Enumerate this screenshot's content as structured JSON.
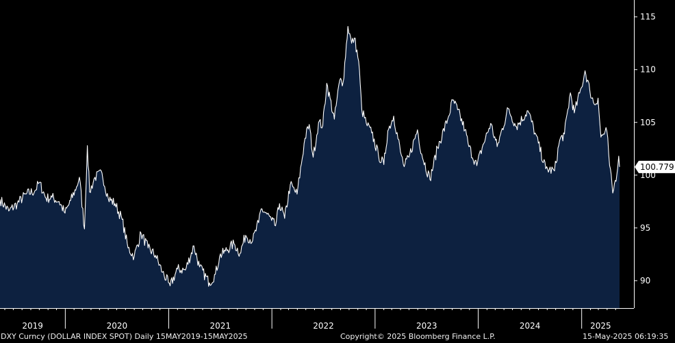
{
  "chart_data": {
    "type": "area",
    "title": "",
    "xlabel": "",
    "ylabel": "",
    "x_range": [
      "2019-05-15",
      "2025-05-15"
    ],
    "ylim": [
      87.4,
      116.6
    ],
    "y_ticks": [
      90,
      95,
      100,
      105,
      110,
      115
    ],
    "x_ticks": [
      "2019",
      "2020",
      "2021",
      "2022",
      "2023",
      "2024",
      "2025"
    ],
    "grid": false,
    "series": [
      {
        "color": "#ffffff",
        "fill": "#0d2140",
        "points": [
          [
            "2019-05-15",
            97.7
          ],
          [
            "2019-06-15",
            96.6
          ],
          [
            "2019-07-15",
            97.3
          ],
          [
            "2019-08-15",
            98.2
          ],
          [
            "2019-09-15",
            98.5
          ],
          [
            "2019-10-01",
            99.3
          ],
          [
            "2019-10-25",
            97.8
          ],
          [
            "2019-11-15",
            97.9
          ],
          [
            "2019-12-10",
            97.5
          ],
          [
            "2019-12-31",
            96.4
          ],
          [
            "2020-01-20",
            97.6
          ],
          [
            "2020-02-10",
            98.9
          ],
          [
            "2020-02-20",
            99.8
          ],
          [
            "2020-03-09",
            94.9
          ],
          [
            "2020-03-19",
            102.8
          ],
          [
            "2020-03-27",
            98.4
          ],
          [
            "2020-04-15",
            99.8
          ],
          [
            "2020-05-10",
            100.2
          ],
          [
            "2020-06-01",
            97.8
          ],
          [
            "2020-06-25",
            97.3
          ],
          [
            "2020-07-20",
            95.8
          ],
          [
            "2020-08-10",
            93.1
          ],
          [
            "2020-09-01",
            92.3
          ],
          [
            "2020-09-25",
            94.5
          ],
          [
            "2020-10-20",
            93.1
          ],
          [
            "2020-11-15",
            92.4
          ],
          [
            "2020-12-10",
            90.8
          ],
          [
            "2020-12-31",
            89.8
          ],
          [
            "2021-01-06",
            89.5
          ],
          [
            "2021-02-01",
            91.1
          ],
          [
            "2021-03-01",
            91.0
          ],
          [
            "2021-03-31",
            93.3
          ],
          [
            "2021-04-20",
            91.3
          ],
          [
            "2021-05-25",
            89.8
          ],
          [
            "2021-06-15",
            90.6
          ],
          [
            "2021-06-30",
            92.3
          ],
          [
            "2021-07-20",
            92.8
          ],
          [
            "2021-08-20",
            93.5
          ],
          [
            "2021-09-10",
            92.6
          ],
          [
            "2021-09-30",
            94.3
          ],
          [
            "2021-10-25",
            93.8
          ],
          [
            "2021-11-15",
            95.5
          ],
          [
            "2021-11-24",
            96.8
          ],
          [
            "2021-12-15",
            96.3
          ],
          [
            "2021-12-31",
            95.7
          ],
          [
            "2022-01-14",
            95.2
          ],
          [
            "2022-01-28",
            97.3
          ],
          [
            "2022-02-15",
            95.9
          ],
          [
            "2022-03-07",
            99.1
          ],
          [
            "2022-03-31",
            98.2
          ],
          [
            "2022-04-28",
            103.5
          ],
          [
            "2022-05-13",
            104.8
          ],
          [
            "2022-05-27",
            101.7
          ],
          [
            "2022-06-15",
            105.0
          ],
          [
            "2022-06-30",
            104.7
          ],
          [
            "2022-07-14",
            108.7
          ],
          [
            "2022-08-10",
            105.3
          ],
          [
            "2022-08-29",
            109.0
          ],
          [
            "2022-09-10",
            108.8
          ],
          [
            "2022-09-27",
            114.1
          ],
          [
            "2022-10-10",
            112.5
          ],
          [
            "2022-10-20",
            113.0
          ],
          [
            "2022-11-04",
            110.8
          ],
          [
            "2022-11-15",
            106.2
          ],
          [
            "2022-12-01",
            104.9
          ],
          [
            "2022-12-20",
            104.0
          ],
          [
            "2023-01-13",
            101.9
          ],
          [
            "2023-02-01",
            101.0
          ],
          [
            "2023-02-15",
            104.2
          ],
          [
            "2023-03-08",
            105.6
          ],
          [
            "2023-04-01",
            102.2
          ],
          [
            "2023-04-14",
            100.8
          ],
          [
            "2023-05-01",
            101.7
          ],
          [
            "2023-05-31",
            104.3
          ],
          [
            "2023-06-15",
            102.0
          ],
          [
            "2023-07-14",
            99.6
          ],
          [
            "2023-08-10",
            102.6
          ],
          [
            "2023-09-15",
            105.3
          ],
          [
            "2023-10-03",
            107.1
          ],
          [
            "2023-10-20",
            106.2
          ],
          [
            "2023-11-15",
            104.3
          ],
          [
            "2023-11-29",
            102.7
          ],
          [
            "2023-12-27",
            100.9
          ],
          [
            "2024-01-15",
            102.6
          ],
          [
            "2024-02-14",
            104.9
          ],
          [
            "2024-03-08",
            102.7
          ],
          [
            "2024-04-16",
            106.3
          ],
          [
            "2024-05-15",
            104.6
          ],
          [
            "2024-06-25",
            106.1
          ],
          [
            "2024-07-20",
            104.0
          ],
          [
            "2024-08-27",
            100.6
          ],
          [
            "2024-09-27",
            100.4
          ],
          [
            "2024-10-15",
            103.3
          ],
          [
            "2024-11-01",
            103.9
          ],
          [
            "2024-11-22",
            107.8
          ],
          [
            "2024-12-06",
            105.9
          ],
          [
            "2024-12-31",
            108.3
          ],
          [
            "2025-01-13",
            109.9
          ],
          [
            "2025-01-30",
            108.0
          ],
          [
            "2025-02-15",
            106.7
          ],
          [
            "2025-02-28",
            107.3
          ],
          [
            "2025-03-10",
            103.6
          ],
          [
            "2025-03-31",
            104.2
          ],
          [
            "2025-04-10",
            100.9
          ],
          [
            "2025-04-21",
            98.3
          ],
          [
            "2025-04-30",
            99.5
          ],
          [
            "2025-05-08",
            100.6
          ],
          [
            "2025-05-12",
            101.8
          ],
          [
            "2025-05-15",
            100.779
          ]
        ]
      }
    ],
    "last_value_label": "100.779",
    "footer_left": "DXY Curncy (DOLLAR INDEX SPOT)  Daily 15MAY2019-15MAY2025",
    "footer_center": "Copyright© 2025 Bloomberg Finance L.P.",
    "footer_right": "15-May-2025 06:19:35"
  }
}
